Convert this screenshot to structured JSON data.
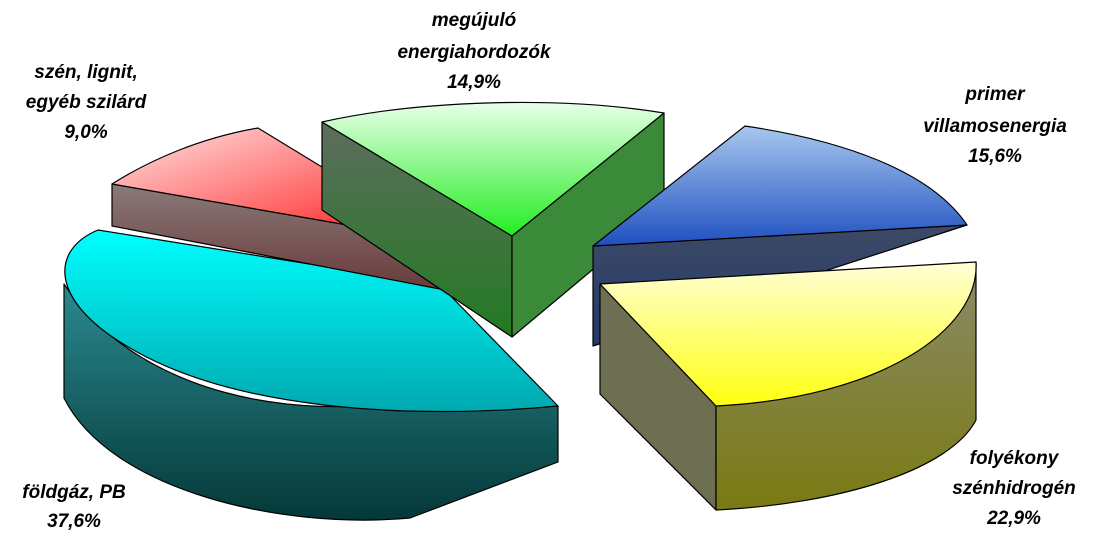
{
  "chart_data": {
    "type": "pie",
    "three_d": true,
    "exploded": true,
    "title": "",
    "slices": [
      {
        "label_lines": [
          "megújuló",
          "energiahordozók"
        ],
        "value_label": "14,9%",
        "value": 14.9,
        "color": "#2a9a2a"
      },
      {
        "label_lines": [
          "primer",
          "villamosenergia"
        ],
        "value_label": "15,6%",
        "value": 15.6,
        "color": "#1f4fc0"
      },
      {
        "label_lines": [
          "folyékony",
          "szénhidrogén"
        ],
        "value_label": "22,9%",
        "value": 22.9,
        "color": "#d8d800"
      },
      {
        "label_lines": [
          "földgáz, PB"
        ],
        "value_label": "37,6%",
        "value": 37.6,
        "color": "#00a9b0"
      },
      {
        "label_lines": [
          "szén, lignit,",
          "egyéb szilárd"
        ],
        "value_label": "9,0%",
        "value": 9.0,
        "color": "#e02020"
      }
    ]
  }
}
